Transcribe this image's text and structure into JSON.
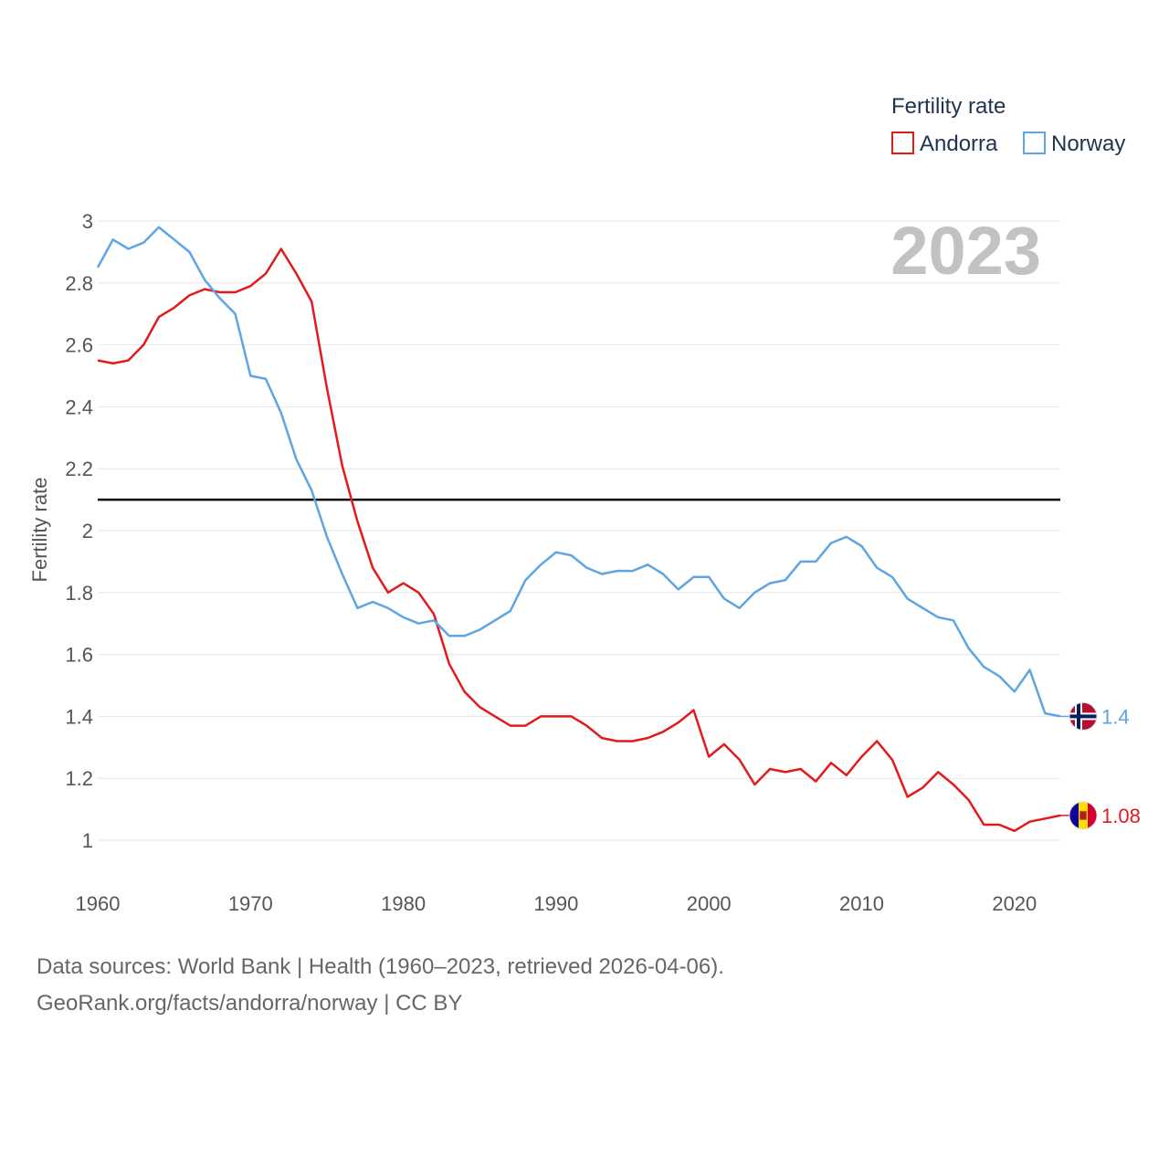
{
  "chart_data": {
    "type": "line",
    "legend_title": "Fertility rate",
    "ylabel": "Fertility rate",
    "year_label": "2023",
    "xlim": [
      1960,
      2023
    ],
    "ylim": [
      1,
      3
    ],
    "y_ticks": [
      1,
      1.2,
      1.4,
      1.6,
      1.8,
      2,
      2.2,
      2.4,
      2.6,
      2.8,
      3
    ],
    "y_tick_labels": [
      "1",
      "1.2",
      "1.4",
      "1.6",
      "1.8",
      "2",
      "2.2",
      "2.4",
      "2.6",
      "2.8",
      "3"
    ],
    "x_ticks": [
      1960,
      1970,
      1980,
      1990,
      2000,
      2010,
      2020
    ],
    "x_tick_labels": [
      "1960",
      "1970",
      "1980",
      "1990",
      "2000",
      "2010",
      "2020"
    ],
    "reference_line": 2.1,
    "x": [
      1960,
      1961,
      1962,
      1963,
      1964,
      1965,
      1966,
      1967,
      1968,
      1969,
      1970,
      1971,
      1972,
      1973,
      1974,
      1975,
      1976,
      1977,
      1978,
      1979,
      1980,
      1981,
      1982,
      1983,
      1984,
      1985,
      1986,
      1987,
      1988,
      1989,
      1990,
      1991,
      1992,
      1993,
      1994,
      1995,
      1996,
      1997,
      1998,
      1999,
      2000,
      2001,
      2002,
      2003,
      2004,
      2005,
      2006,
      2007,
      2008,
      2009,
      2010,
      2011,
      2012,
      2013,
      2014,
      2015,
      2016,
      2017,
      2018,
      2019,
      2020,
      2021,
      2022,
      2023
    ],
    "series": [
      {
        "name": "Andorra",
        "color": "#e31a1c",
        "end_label": "1.08",
        "flag": "andorra-flag",
        "values": [
          2.55,
          2.54,
          2.55,
          2.6,
          2.69,
          2.72,
          2.76,
          2.78,
          2.77,
          2.77,
          2.79,
          2.83,
          2.91,
          2.83,
          2.74,
          2.46,
          2.21,
          2.03,
          1.88,
          1.8,
          1.83,
          1.8,
          1.73,
          1.57,
          1.48,
          1.43,
          1.4,
          1.37,
          1.37,
          1.4,
          1.4,
          1.4,
          1.37,
          1.33,
          1.32,
          1.32,
          1.33,
          1.35,
          1.38,
          1.42,
          1.27,
          1.31,
          1.26,
          1.18,
          1.23,
          1.22,
          1.23,
          1.19,
          1.25,
          1.21,
          1.27,
          1.32,
          1.26,
          1.14,
          1.17,
          1.22,
          1.18,
          1.13,
          1.05,
          1.05,
          1.03,
          1.06,
          1.07,
          1.08
        ]
      },
      {
        "name": "Norway",
        "color": "#5da5e3",
        "end_label": "1.4",
        "flag": "norway-flag",
        "values": [
          2.85,
          2.94,
          2.91,
          2.93,
          2.98,
          2.94,
          2.9,
          2.81,
          2.75,
          2.7,
          2.5,
          2.49,
          2.38,
          2.23,
          2.13,
          1.98,
          1.86,
          1.75,
          1.77,
          1.75,
          1.72,
          1.7,
          1.71,
          1.66,
          1.66,
          1.68,
          1.71,
          1.74,
          1.84,
          1.89,
          1.93,
          1.92,
          1.88,
          1.86,
          1.87,
          1.87,
          1.89,
          1.86,
          1.81,
          1.85,
          1.85,
          1.78,
          1.75,
          1.8,
          1.83,
          1.84,
          1.9,
          1.9,
          1.96,
          1.98,
          1.95,
          1.88,
          1.85,
          1.78,
          1.75,
          1.72,
          1.71,
          1.62,
          1.56,
          1.53,
          1.48,
          1.55,
          1.41,
          1.4
        ]
      }
    ]
  },
  "footer": {
    "sources": "Data sources: World Bank | Health (1960–2023, retrieved 2026-04-06).",
    "credit": "GeoRank.org/facts/andorra/norway | CC BY"
  }
}
